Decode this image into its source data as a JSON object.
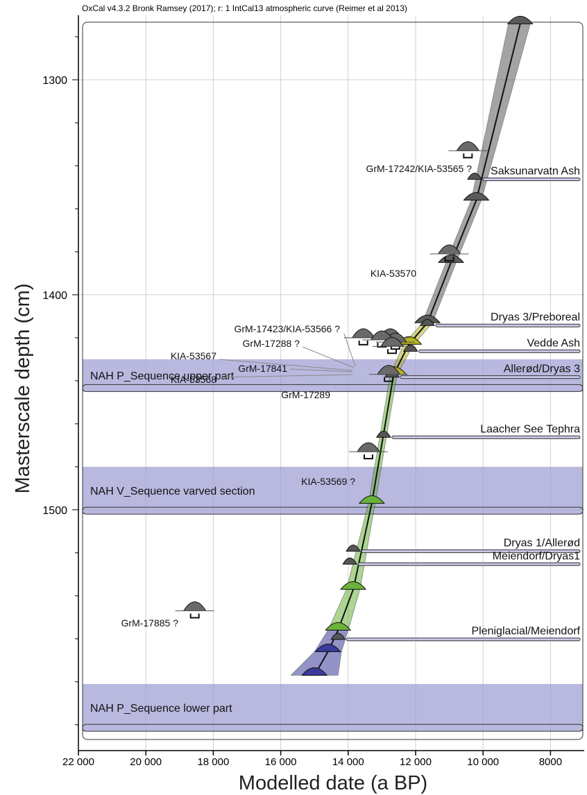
{
  "header": {
    "attribution": "OxCal v4.3.2 Bronk Ramsey (2017); r: 1 IntCal13 atmospheric curve (Reimer et al 2013)"
  },
  "chart_data": {
    "type": "scatter",
    "title": "",
    "xlabel": "Modelled date (a BP)",
    "ylabel": "Masterscale depth (cm)",
    "x_reversed": true,
    "xlim": [
      22000,
      7000
    ],
    "ylim": [
      1270,
      1612
    ],
    "y_inverted": true,
    "x_ticks": [
      22000,
      20000,
      18000,
      16000,
      14000,
      12000,
      10000,
      8000
    ],
    "x_tick_labels": [
      "22 000",
      "20 000",
      "18 000",
      "16 000",
      "14 000",
      "12 000",
      "10 000",
      "8000"
    ],
    "y_ticks": [
      1300,
      1400,
      1500
    ],
    "y_tick_labels": [
      "1300",
      "1400",
      "1500"
    ],
    "grid": true,
    "sequences": [
      {
        "label": "NAH P_Sequence upper part",
        "depth_top": 1430,
        "depth_bottom": 1445,
        "color": "#9b9bd2"
      },
      {
        "label": "NAH V_Sequence varved section",
        "depth_top": 1480,
        "depth_bottom": 1502,
        "color": "#9b9bd2"
      },
      {
        "label": "NAH P_Sequence lower part",
        "depth_top": 1581,
        "depth_bottom": 1603,
        "color": "#9b9bd2"
      }
    ],
    "model_envelope": [
      {
        "date": 8900,
        "depth": 1274,
        "min": 8600,
        "max": 9250,
        "color": "#5a5a5a"
      },
      {
        "date": 10200,
        "depth": 1356,
        "min": 10050,
        "max": 10350,
        "color": "#5a5a5a"
      },
      {
        "date": 10950,
        "depth": 1385,
        "min": 10800,
        "max": 11100,
        "color": "#5a5a5a"
      },
      {
        "date": 11650,
        "depth": 1413,
        "min": 11500,
        "max": 11800,
        "color": "#5a5a5a"
      },
      {
        "date": 12200,
        "depth": 1423,
        "min": 12050,
        "max": 12350,
        "color": "#b5b520"
      },
      {
        "date": 12650,
        "depth": 1437,
        "min": 12550,
        "max": 12750,
        "color": "#b5b520"
      },
      {
        "date": 13300,
        "depth": 1497,
        "min": 13200,
        "max": 13400,
        "color": "#6ab23a"
      },
      {
        "date": 13850,
        "depth": 1537,
        "min": 13650,
        "max": 14050,
        "color": "#6ab23a"
      },
      {
        "date": 14300,
        "depth": 1556,
        "min": 14000,
        "max": 14600,
        "color": "#6ab23a"
      },
      {
        "date": 14600,
        "depth": 1566,
        "min": 14200,
        "max": 15000,
        "color": "#3b3b9c"
      },
      {
        "date": 15000,
        "depth": 1577,
        "min": 14300,
        "max": 15700,
        "color": "#3b3b9c"
      }
    ],
    "dated_samples": [
      {
        "label": "GrM-17242/KIA-53565 ?",
        "date": 10450,
        "depth": 1333
      },
      {
        "label": "KIA-53570",
        "date": 11000,
        "depth": 1381
      },
      {
        "label": "GrM-17423/KIA-53566 ?",
        "date": 12750,
        "depth": 1420
      },
      {
        "label": "GrM-17288 ?",
        "date": 12600,
        "depth": 1422
      },
      {
        "label": "KIA-53567",
        "date": 13550,
        "depth": 1420
      },
      {
        "label": "GrM-17841",
        "date": 13000,
        "depth": 1421
      },
      {
        "label": "KIA-53568",
        "date": 12700,
        "depth": 1424
      },
      {
        "label": "GrM-17289",
        "date": 12800,
        "depth": 1437
      },
      {
        "label": "KIA-53569 ?",
        "date": 13400,
        "depth": 1473
      },
      {
        "label": "GrM-17885 ?",
        "date": 18550,
        "depth": 1547
      }
    ],
    "boundaries": [
      {
        "label": "Saksunarvatn Ash",
        "date": 10250,
        "depth": 1345
      },
      {
        "label": "Dryas 3/Preboreal",
        "date": 11650,
        "depth": 1413
      },
      {
        "label": "Vedde Ash",
        "date": 12150,
        "depth": 1425
      },
      {
        "label": "Allerød/Dryas 3",
        "date": 12700,
        "depth": 1437
      },
      {
        "label": "Laacher See Tephra",
        "date": 12950,
        "depth": 1465
      },
      {
        "label": "Dryas 1/Allerød",
        "date": 13850,
        "depth": 1518
      },
      {
        "label": "Meiendorf/Dryas1",
        "date": 13950,
        "depth": 1524
      },
      {
        "label": "Pleniglacial/Meiendorf",
        "date": 14300,
        "depth": 1559
      }
    ]
  },
  "colors": {
    "sequence_band": "#9b9bd2",
    "holocene": "#5a5a5a",
    "younger_dryas": "#b5b520",
    "lateglacial": "#6ab23a",
    "pleniglacial": "#3b3b9c",
    "grid": "#d0d0d0"
  }
}
